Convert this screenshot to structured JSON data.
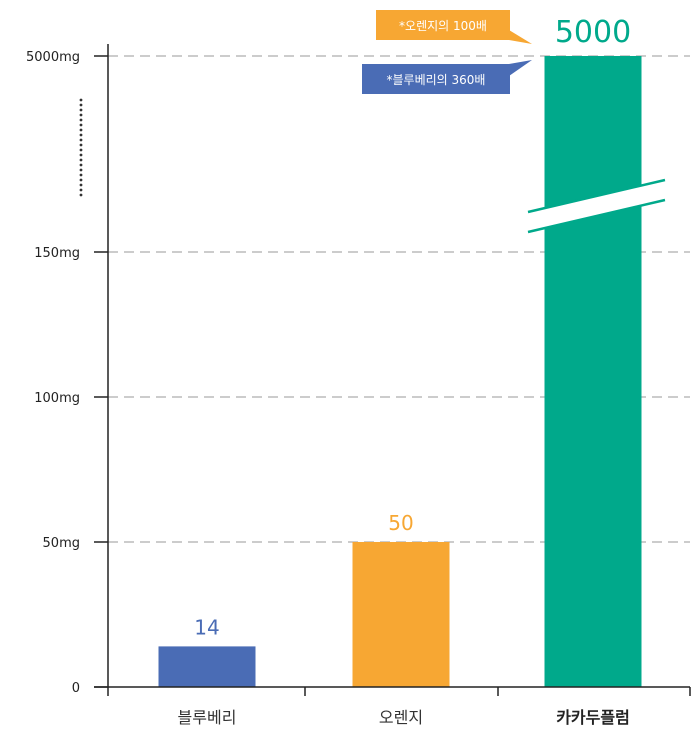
{
  "chart_data": {
    "type": "bar",
    "categories": [
      "블루베리",
      "오렌지",
      "카카두플럼"
    ],
    "values": [
      14,
      50,
      5000
    ],
    "colors": [
      "#4a6cb5",
      "#f7a733",
      "#00a98b"
    ],
    "value_labels": [
      "14",
      "50",
      "5000"
    ],
    "y_ticks": [
      {
        "value": 0,
        "label": "0"
      },
      {
        "value": 50,
        "label": "50mg"
      },
      {
        "value": 100,
        "label": "100mg"
      },
      {
        "value": 150,
        "label": "150mg"
      },
      {
        "value": 5000,
        "label": "5000mg"
      }
    ],
    "y_axis_break": true,
    "grid": "dashed horizontal",
    "highlight_category": "카카두플럼",
    "annotations": [
      {
        "text": "*오렌지의 100배",
        "color": "#f7a733"
      },
      {
        "text": "*블루베리의 360배",
        "color": "#4a6cb5"
      }
    ]
  }
}
